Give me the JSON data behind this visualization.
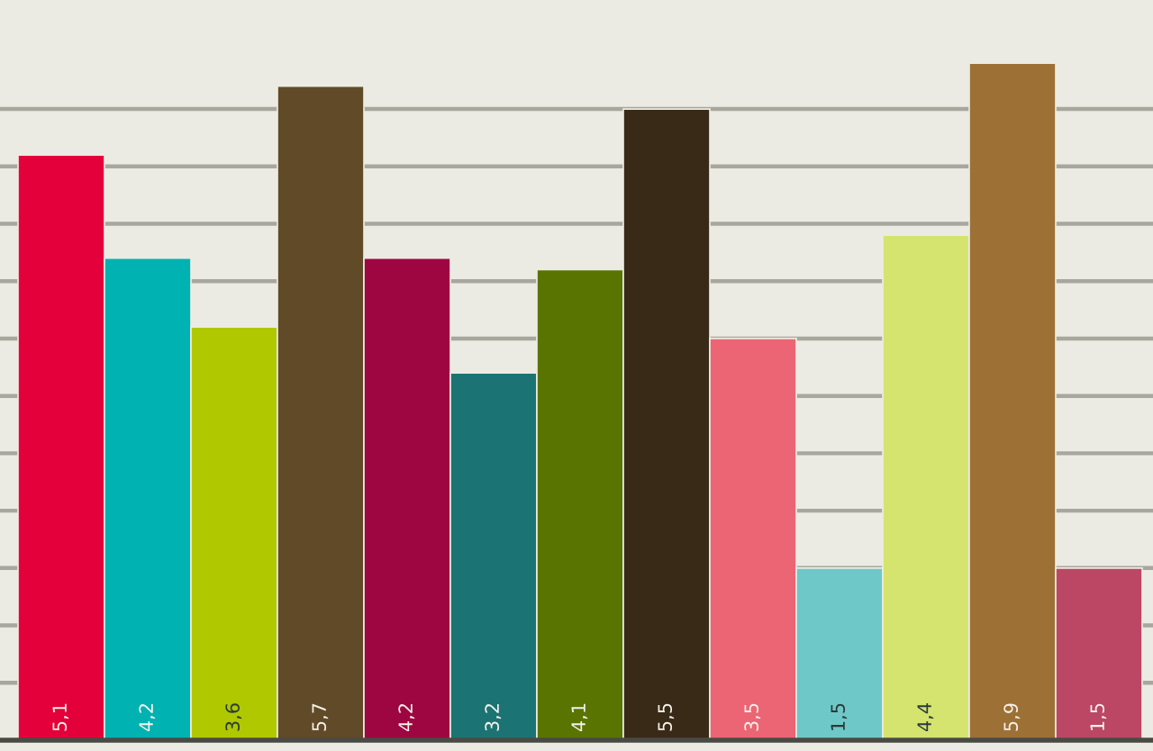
{
  "chart_data": {
    "type": "bar",
    "categories": [
      null,
      null,
      null,
      null,
      null,
      null,
      null,
      null,
      null,
      null,
      null,
      null,
      null
    ],
    "values": [
      5.1,
      4.2,
      3.6,
      5.7,
      4.2,
      3.2,
      4.1,
      5.5,
      3.5,
      1.5,
      4.4,
      5.9,
      1.5
    ],
    "colors": [
      "#e4003a",
      "#00b2b2",
      "#b0c800",
      "#614a27",
      "#9e0641",
      "#1c7373",
      "#5a7402",
      "#392a18",
      "#ec6574",
      "#6fc8c8",
      "#d5e46f",
      "#9d7036",
      "#bb4765"
    ],
    "value_labels": [
      "5,1",
      "4,2",
      "3,6",
      "5,7",
      "4,2",
      "3,2",
      "4,1",
      "5,5",
      "3,5",
      "1,5",
      "4,4",
      "5,9",
      "1,5"
    ],
    "ylim": [
      0,
      6.45
    ],
    "yticks": [
      {
        "value": 0.5,
        "label": null
      },
      {
        "value": 1.0,
        "label": null
      },
      {
        "value": 1.5,
        "label": null
      },
      {
        "value": 2.0,
        "label": null
      },
      {
        "value": 2.5,
        "label": null
      },
      {
        "value": 3.0,
        "label": null
      },
      {
        "value": 3.5,
        "label": null
      },
      {
        "value": 4.0,
        "label": null
      },
      {
        "value": 4.5,
        "label": null
      },
      {
        "value": 5.0,
        "label": null
      },
      {
        "value": 5.5,
        "label": null
      }
    ],
    "grid": "y"
  }
}
